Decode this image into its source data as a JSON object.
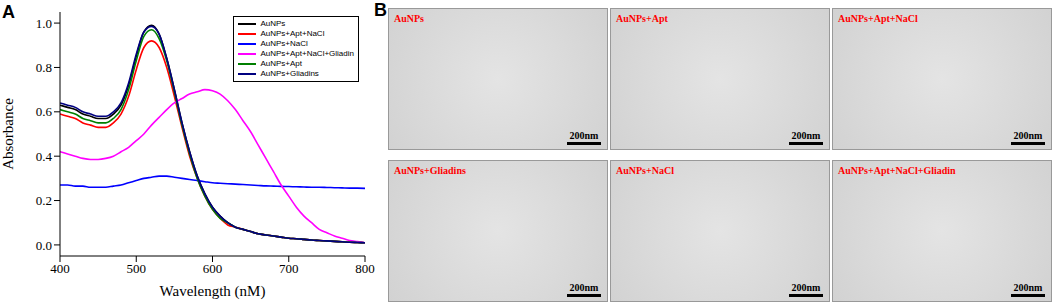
{
  "chart_data": {
    "type": "line",
    "panel_label": "A",
    "x_label": "Wavelength (nM)",
    "y_label": "Absorbance",
    "xlim": [
      400,
      800
    ],
    "xticks": [
      400,
      500,
      600,
      700,
      800
    ],
    "ylim": [
      -0.05,
      1.05
    ],
    "yticks": [
      {
        "value": 0,
        "label": "0.0"
      },
      {
        "value": 0.2,
        "label": "0.2"
      },
      {
        "value": 0.4,
        "label": "0.4"
      },
      {
        "value": 0.6,
        "label": "0.6"
      },
      {
        "value": 0.8,
        "label": "0.8"
      },
      {
        "value": 1,
        "label": "1.0"
      }
    ],
    "grid": false,
    "legend": "upper right",
    "x": [
      400,
      410,
      420,
      430,
      440,
      450,
      460,
      470,
      480,
      490,
      500,
      510,
      520,
      530,
      540,
      550,
      560,
      570,
      580,
      590,
      600,
      610,
      620,
      630,
      640,
      650,
      660,
      670,
      680,
      690,
      700,
      710,
      720,
      730,
      740,
      750,
      760,
      770,
      780,
      790,
      800
    ],
    "series": [
      {
        "name": "AuNPs",
        "color": "#000000",
        "values": [
          0.63,
          0.62,
          0.61,
          0.59,
          0.58,
          0.57,
          0.57,
          0.59,
          0.63,
          0.72,
          0.85,
          0.96,
          0.99,
          0.95,
          0.84,
          0.7,
          0.55,
          0.42,
          0.31,
          0.23,
          0.17,
          0.13,
          0.1,
          0.08,
          0.07,
          0.06,
          0.05,
          0.045,
          0.04,
          0.035,
          0.03,
          0.028,
          0.025,
          0.022,
          0.02,
          0.018,
          0.016,
          0.014,
          0.012,
          0.011,
          0.01
        ]
      },
      {
        "name": "AuNPs+Apt+NaCl",
        "color": "#ff0000",
        "values": [
          0.59,
          0.58,
          0.57,
          0.55,
          0.54,
          0.53,
          0.53,
          0.55,
          0.59,
          0.67,
          0.79,
          0.89,
          0.92,
          0.89,
          0.8,
          0.67,
          0.53,
          0.4,
          0.3,
          0.22,
          0.16,
          0.12,
          0.09,
          0.08,
          0.07,
          0.06,
          0.05,
          0.045,
          0.04,
          0.035,
          0.03,
          0.028,
          0.025,
          0.022,
          0.02,
          0.018,
          0.016,
          0.014,
          0.012,
          0.011,
          0.01
        ]
      },
      {
        "name": "AuNPs+NaCl",
        "color": "#0000ff",
        "values": [
          0.27,
          0.27,
          0.265,
          0.265,
          0.26,
          0.26,
          0.26,
          0.265,
          0.27,
          0.28,
          0.29,
          0.3,
          0.305,
          0.31,
          0.31,
          0.305,
          0.3,
          0.295,
          0.29,
          0.285,
          0.28,
          0.278,
          0.276,
          0.274,
          0.272,
          0.27,
          0.268,
          0.266,
          0.265,
          0.264,
          0.263,
          0.262,
          0.261,
          0.26,
          0.26,
          0.259,
          0.258,
          0.257,
          0.256,
          0.256,
          0.255
        ]
      },
      {
        "name": "AuNPs+Apt+NaCl+Gliadin",
        "color": "#ff00ff",
        "values": [
          0.42,
          0.41,
          0.4,
          0.39,
          0.385,
          0.385,
          0.39,
          0.4,
          0.42,
          0.44,
          0.47,
          0.5,
          0.54,
          0.575,
          0.61,
          0.64,
          0.66,
          0.68,
          0.69,
          0.7,
          0.695,
          0.68,
          0.65,
          0.61,
          0.56,
          0.51,
          0.45,
          0.39,
          0.33,
          0.27,
          0.22,
          0.17,
          0.13,
          0.1,
          0.07,
          0.055,
          0.04,
          0.03,
          0.02,
          0.015,
          0.01
        ]
      },
      {
        "name": "AuNPs+Apt",
        "color": "#008000",
        "values": [
          0.61,
          0.6,
          0.59,
          0.57,
          0.56,
          0.55,
          0.55,
          0.57,
          0.61,
          0.7,
          0.83,
          0.94,
          0.97,
          0.93,
          0.83,
          0.69,
          0.54,
          0.41,
          0.3,
          0.22,
          0.16,
          0.12,
          0.1,
          0.08,
          0.07,
          0.06,
          0.05,
          0.045,
          0.04,
          0.035,
          0.03,
          0.028,
          0.025,
          0.022,
          0.02,
          0.018,
          0.016,
          0.014,
          0.012,
          0.011,
          0.01
        ]
      },
      {
        "name": "AuNPs+Gliadins",
        "color": "#000080",
        "values": [
          0.64,
          0.63,
          0.62,
          0.6,
          0.59,
          0.58,
          0.58,
          0.6,
          0.64,
          0.73,
          0.86,
          0.96,
          0.985,
          0.95,
          0.84,
          0.7,
          0.55,
          0.42,
          0.31,
          0.23,
          0.17,
          0.13,
          0.1,
          0.08,
          0.07,
          0.06,
          0.05,
          0.045,
          0.04,
          0.035,
          0.03,
          0.028,
          0.025,
          0.022,
          0.02,
          0.018,
          0.016,
          0.014,
          0.012,
          0.011,
          0.01
        ]
      }
    ]
  },
  "micrographs": {
    "panel_label": "B",
    "images": [
      {
        "label": "AuNPs",
        "scale_bar": "200nm"
      },
      {
        "label": "AuNPs+Apt",
        "scale_bar": "200nm"
      },
      {
        "label": "AuNPs+Apt+NaCl",
        "scale_bar": "200nm"
      },
      {
        "label": "AuNPs+Gliadins",
        "scale_bar": "200nm"
      },
      {
        "label": "AuNPs+NaCl",
        "scale_bar": "200nm"
      },
      {
        "label": "AuNPs+Apt+NaCl+Gliadin",
        "scale_bar": "200nm"
      }
    ]
  }
}
